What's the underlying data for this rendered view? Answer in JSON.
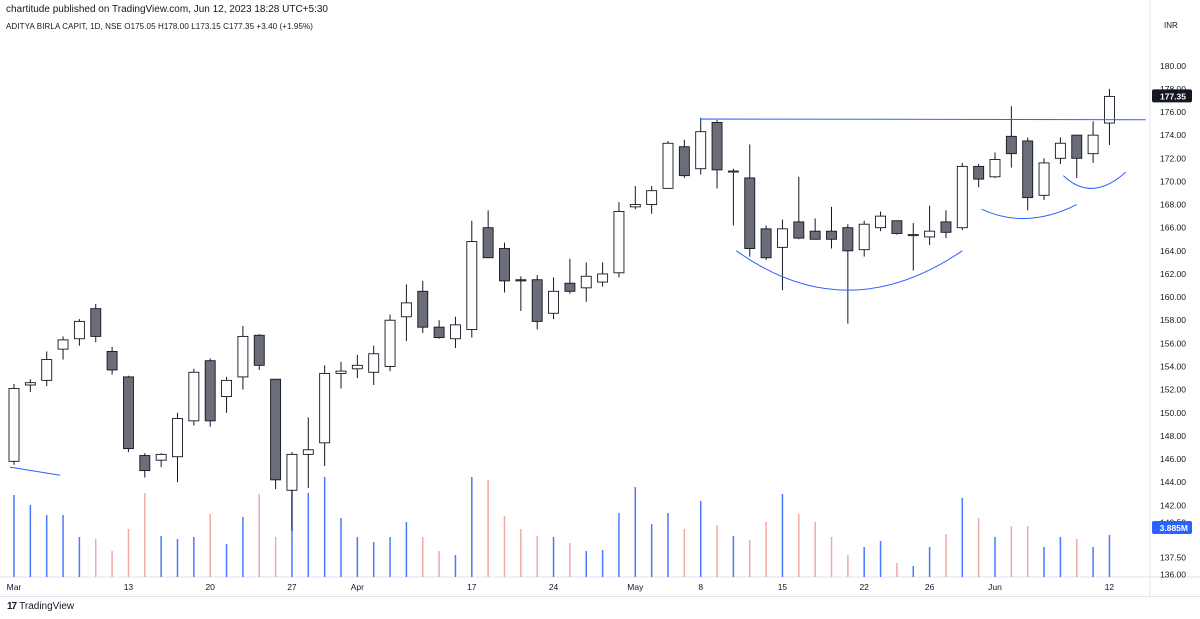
{
  "header": {
    "publish_line": "chartitude published on TradingView.com, Jun 12, 2023 18:28 UTC+5:30",
    "symbol_line": "ADITYA BIRLA CAPIT, 1D, NSE  O175.05  H178.00  L173.15  C177.35  +3.40 (+1.95%)",
    "currency": "INR"
  },
  "footer": {
    "brand": "TradingView",
    "logo_mark": "17"
  },
  "colors": {
    "up_body": "#ffffff",
    "down_body": "#6b6d78",
    "wick": "#131722",
    "trendline": "#2962ff",
    "vol_up": "#2962ff",
    "vol_down": "#ef9a9a",
    "last_price_bg": "#131722",
    "volume_label_bg": "#2962ff"
  },
  "chart_data": {
    "type": "candlestick",
    "title": "ADITYA BIRLA CAPIT, 1D, NSE",
    "ylabel": "INR",
    "ylim": [
      135.8,
      182.4
    ],
    "yticks": [
      180,
      178,
      176,
      174,
      172,
      170,
      168,
      166,
      164,
      162,
      160,
      158,
      156,
      154,
      152,
      150,
      148,
      146,
      144,
      142,
      140.5,
      137.5,
      136
    ],
    "ytick_labels": [
      "180.00",
      "178.00",
      "176.00",
      "174.00",
      "172.00",
      "170.00",
      "168.00",
      "166.00",
      "164.00",
      "162.00",
      "160.00",
      "158.00",
      "156.00",
      "154.00",
      "152.00",
      "150.00",
      "148.00",
      "146.00",
      "144.00",
      "142.00",
      "140.50",
      "137.50",
      "136.00"
    ],
    "last_price_label": "177.35",
    "volume_label": "3.885M",
    "x_tick_labels": [
      {
        "index": 0,
        "label": "Mar"
      },
      {
        "index": 7,
        "label": "13"
      },
      {
        "index": 12,
        "label": "20"
      },
      {
        "index": 17,
        "label": "27"
      },
      {
        "index": 21,
        "label": "Apr"
      },
      {
        "index": 28,
        "label": "17"
      },
      {
        "index": 33,
        "label": "24"
      },
      {
        "index": 38,
        "label": "May"
      },
      {
        "index": 42,
        "label": "8"
      },
      {
        "index": 47,
        "label": "15"
      },
      {
        "index": 52,
        "label": "22"
      },
      {
        "index": 56,
        "label": "26"
      },
      {
        "index": 60,
        "label": "Jun"
      },
      {
        "index": 67,
        "label": "12"
      }
    ],
    "candles": [
      {
        "o": 145.8,
        "h": 152.5,
        "l": 145.5,
        "c": 152.1
      },
      {
        "o": 152.4,
        "h": 152.9,
        "l": 151.8,
        "c": 152.6
      },
      {
        "o": 152.8,
        "h": 155.3,
        "l": 152.3,
        "c": 154.6
      },
      {
        "o": 155.5,
        "h": 156.6,
        "l": 154.6,
        "c": 156.3
      },
      {
        "o": 156.4,
        "h": 158.1,
        "l": 155.8,
        "c": 157.9
      },
      {
        "o": 159.0,
        "h": 159.4,
        "l": 156.1,
        "c": 156.6
      },
      {
        "o": 155.3,
        "h": 155.7,
        "l": 153.3,
        "c": 153.7
      },
      {
        "o": 153.1,
        "h": 153.2,
        "l": 146.6,
        "c": 146.9
      },
      {
        "o": 146.3,
        "h": 146.5,
        "l": 144.4,
        "c": 145.0
      },
      {
        "o": 145.9,
        "h": 146.5,
        "l": 145.3,
        "c": 146.4
      },
      {
        "o": 146.2,
        "h": 150.0,
        "l": 144.0,
        "c": 149.5
      },
      {
        "o": 149.3,
        "h": 153.8,
        "l": 148.9,
        "c": 153.5
      },
      {
        "o": 154.5,
        "h": 154.7,
        "l": 148.8,
        "c": 149.3
      },
      {
        "o": 151.4,
        "h": 153.1,
        "l": 150.0,
        "c": 152.8
      },
      {
        "o": 153.1,
        "h": 157.5,
        "l": 152.0,
        "c": 156.6
      },
      {
        "o": 156.7,
        "h": 156.8,
        "l": 153.7,
        "c": 154.1
      },
      {
        "o": 152.9,
        "h": 152.9,
        "l": 143.4,
        "c": 144.2
      },
      {
        "o": 143.3,
        "h": 146.6,
        "l": 139.8,
        "c": 146.4
      },
      {
        "o": 146.4,
        "h": 149.6,
        "l": 143.5,
        "c": 146.8
      },
      {
        "o": 147.4,
        "h": 154.1,
        "l": 145.4,
        "c": 153.4
      },
      {
        "o": 153.4,
        "h": 154.4,
        "l": 152.1,
        "c": 153.6
      },
      {
        "o": 153.8,
        "h": 155.0,
        "l": 153.0,
        "c": 154.1
      },
      {
        "o": 153.5,
        "h": 155.8,
        "l": 152.4,
        "c": 155.1
      },
      {
        "o": 154.0,
        "h": 158.5,
        "l": 153.6,
        "c": 158.0
      },
      {
        "o": 158.3,
        "h": 161.1,
        "l": 156.2,
        "c": 159.5
      },
      {
        "o": 160.5,
        "h": 161.4,
        "l": 156.9,
        "c": 157.4
      },
      {
        "o": 157.4,
        "h": 158.0,
        "l": 156.4,
        "c": 156.5
      },
      {
        "o": 156.4,
        "h": 158.3,
        "l": 155.6,
        "c": 157.6
      },
      {
        "o": 157.2,
        "h": 166.6,
        "l": 156.5,
        "c": 164.8
      },
      {
        "o": 166.0,
        "h": 167.5,
        "l": 163.4,
        "c": 163.4
      },
      {
        "o": 164.2,
        "h": 164.7,
        "l": 160.4,
        "c": 161.4
      },
      {
        "o": 161.5,
        "h": 161.8,
        "l": 158.8,
        "c": 161.4
      },
      {
        "o": 161.5,
        "h": 161.9,
        "l": 157.2,
        "c": 157.9
      },
      {
        "o": 158.6,
        "h": 161.7,
        "l": 158.1,
        "c": 160.5
      },
      {
        "o": 161.2,
        "h": 163.3,
        "l": 160.3,
        "c": 160.5
      },
      {
        "o": 160.8,
        "h": 163.0,
        "l": 159.6,
        "c": 161.8
      },
      {
        "o": 161.3,
        "h": 163.0,
        "l": 160.9,
        "c": 162.0
      },
      {
        "o": 162.1,
        "h": 168.2,
        "l": 161.7,
        "c": 167.4
      },
      {
        "o": 167.8,
        "h": 169.6,
        "l": 167.6,
        "c": 168.0
      },
      {
        "o": 168.0,
        "h": 169.6,
        "l": 167.2,
        "c": 169.2
      },
      {
        "o": 169.4,
        "h": 173.5,
        "l": 169.4,
        "c": 173.3
      },
      {
        "o": 173.0,
        "h": 173.6,
        "l": 170.3,
        "c": 170.5
      },
      {
        "o": 171.1,
        "h": 175.5,
        "l": 170.6,
        "c": 174.3
      },
      {
        "o": 175.1,
        "h": 175.3,
        "l": 169.4,
        "c": 171.0
      },
      {
        "o": 170.9,
        "h": 171.1,
        "l": 166.2,
        "c": 170.9
      },
      {
        "o": 170.3,
        "h": 173.2,
        "l": 163.5,
        "c": 164.2
      },
      {
        "o": 165.9,
        "h": 166.2,
        "l": 163.2,
        "c": 163.4
      },
      {
        "o": 164.3,
        "h": 166.7,
        "l": 160.6,
        "c": 165.9
      },
      {
        "o": 166.5,
        "h": 170.4,
        "l": 165.0,
        "c": 165.1
      },
      {
        "o": 165.7,
        "h": 166.8,
        "l": 165.0,
        "c": 165.0
      },
      {
        "o": 165.7,
        "h": 167.8,
        "l": 164.2,
        "c": 165.0
      },
      {
        "o": 166.0,
        "h": 166.3,
        "l": 157.7,
        "c": 164.0
      },
      {
        "o": 164.1,
        "h": 166.6,
        "l": 163.5,
        "c": 166.3
      },
      {
        "o": 166.0,
        "h": 167.4,
        "l": 165.7,
        "c": 167.0
      },
      {
        "o": 166.6,
        "h": 166.6,
        "l": 165.4,
        "c": 165.5
      },
      {
        "o": 165.4,
        "h": 166.4,
        "l": 162.3,
        "c": 165.4
      },
      {
        "o": 165.2,
        "h": 167.9,
        "l": 164.5,
        "c": 165.7
      },
      {
        "o": 166.5,
        "h": 167.5,
        "l": 165.1,
        "c": 165.6
      },
      {
        "o": 166.0,
        "h": 171.6,
        "l": 165.8,
        "c": 171.3
      },
      {
        "o": 171.3,
        "h": 171.5,
        "l": 169.5,
        "c": 170.2
      },
      {
        "o": 170.4,
        "h": 172.5,
        "l": 170.3,
        "c": 171.9
      },
      {
        "o": 173.9,
        "h": 176.5,
        "l": 171.2,
        "c": 172.4
      },
      {
        "o": 173.5,
        "h": 173.8,
        "l": 167.5,
        "c": 168.6
      },
      {
        "o": 168.8,
        "h": 172.0,
        "l": 168.4,
        "c": 171.6
      },
      {
        "o": 172.0,
        "h": 173.8,
        "l": 171.5,
        "c": 173.3
      },
      {
        "o": 174.0,
        "h": 174.0,
        "l": 170.3,
        "c": 172.0
      },
      {
        "o": 172.4,
        "h": 175.2,
        "l": 171.6,
        "c": 174.0
      },
      {
        "o": 175.05,
        "h": 178.0,
        "l": 173.15,
        "c": 177.35
      }
    ],
    "volume_rel": [
      0.82,
      0.72,
      0.62,
      0.62,
      0.4,
      0.38,
      0.26,
      0.48,
      0.84,
      0.41,
      0.38,
      0.4,
      0.63,
      0.33,
      0.6,
      0.83,
      0.4,
      1.0,
      0.84,
      1.0,
      0.59,
      0.4,
      0.35,
      0.4,
      0.55,
      0.4,
      0.26,
      0.22,
      1.0,
      0.97,
      0.61,
      0.48,
      0.41,
      0.4,
      0.34,
      0.26,
      0.27,
      0.64,
      0.9,
      0.53,
      0.64,
      0.48,
      0.76,
      0.52,
      0.41,
      0.37,
      0.55,
      0.83,
      0.63,
      0.55,
      0.4,
      0.22,
      0.3,
      0.36,
      0.14,
      0.11,
      0.3,
      0.43,
      0.79,
      0.59,
      0.4,
      0.51,
      0.51,
      0.3,
      0.4,
      0.38,
      0.3,
      0.42
    ],
    "annotations": [
      {
        "type": "horizontal-resistance",
        "from_index": 42,
        "to_index": 68,
        "price": 175.4
      },
      {
        "type": "trendline",
        "from": [
          0,
          145.3
        ],
        "to": [
          3,
          144.6
        ]
      },
      {
        "type": "cup-arc",
        "from": [
          44,
          164.0
        ],
        "bottom": [
          51,
          160.6
        ],
        "to": [
          58,
          164.0
        ]
      },
      {
        "type": "cup-arc",
        "from": [
          59,
          167.6
        ],
        "bottom": [
          62,
          166.8
        ],
        "to": [
          65,
          168.0
        ]
      },
      {
        "type": "cup-arc",
        "from": [
          64,
          170.5
        ],
        "bottom": [
          66,
          169.4
        ],
        "to": [
          68,
          170.8
        ]
      }
    ]
  }
}
